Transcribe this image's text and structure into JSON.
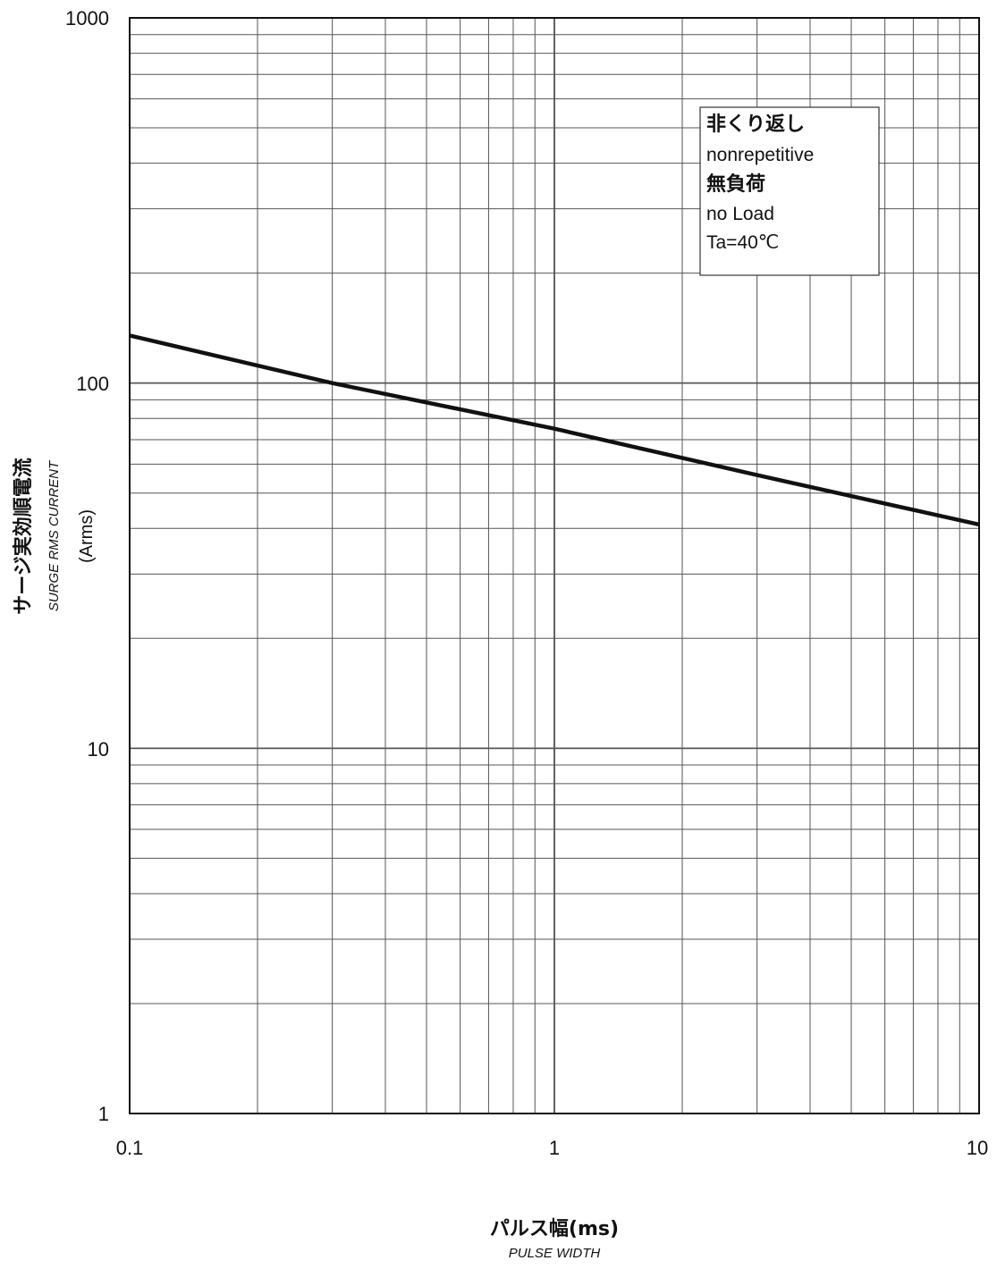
{
  "chart_data": {
    "type": "line",
    "xscale": "log",
    "yscale": "log",
    "xlim": [
      0.1,
      10
    ],
    "ylim": [
      1,
      1000
    ],
    "grid": true,
    "x_ticks": [
      "0.1",
      "1",
      "10"
    ],
    "y_ticks": [
      "1000",
      "100",
      "10",
      "1"
    ],
    "xlabel": {
      "jp": "パルス幅(ms)",
      "en": "PULSE WIDTH"
    },
    "ylabel": {
      "jp": "サージ実効順電流",
      "en": "SURGE RMS CURRENT",
      "unit": "(Arms)"
    },
    "annotation": [
      "非くり返し",
      "nonrepetitive",
      "無負荷",
      "no Load",
      "Ta=40℃"
    ],
    "series": [
      {
        "x": [
          0.1,
          0.3,
          1,
          3,
          10
        ],
        "y": [
          135,
          100,
          75,
          56,
          41
        ]
      }
    ]
  },
  "colors": {
    "line": "#111111",
    "grid": "#555555",
    "frame": "#111111"
  }
}
